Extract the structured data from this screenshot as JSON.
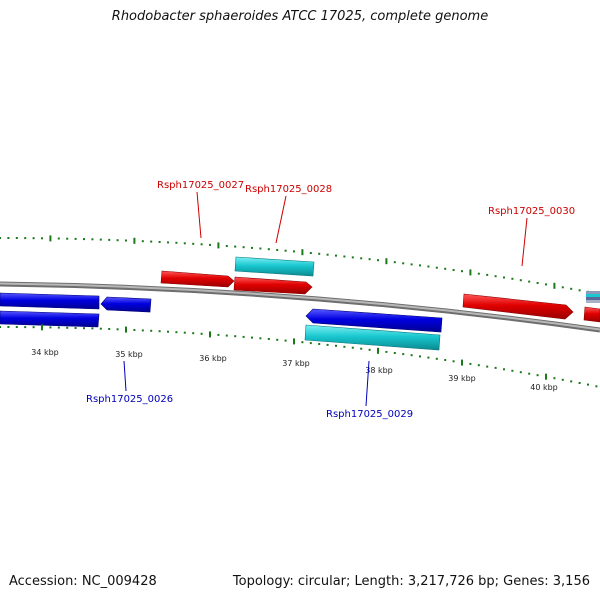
{
  "title": "Rhodobacter sphaeroides ATCC 17025, complete genome",
  "footer": {
    "accession_text": "Accession: NC_009428",
    "summary_text": "Topology: circular; Length: 3,217,726 bp; Genes: 3,156"
  },
  "colors": {
    "backbone": "#8c8c8c",
    "tick": "#1a7a1a",
    "gene_red": "#e00000",
    "gene_cyan": "#19c8d0",
    "gene_blue": "#0000e0",
    "label_red": "#cc0000",
    "label_blue": "#0000bb"
  },
  "scale_labels": [
    "34 kbp",
    "35 kbp",
    "36 kbp",
    "37 kbp",
    "38 kbp",
    "39 kbp",
    "40 kbp"
  ],
  "gene_labels": [
    {
      "text": "Rsph17025_0026",
      "strand": "reverse"
    },
    {
      "text": "Rsph17025_0027",
      "strand": "forward"
    },
    {
      "text": "Rsph17025_0028",
      "strand": "forward"
    },
    {
      "text": "Rsph17025_0029",
      "strand": "reverse"
    },
    {
      "text": "Rsph17025_0030",
      "strand": "forward"
    }
  ]
}
